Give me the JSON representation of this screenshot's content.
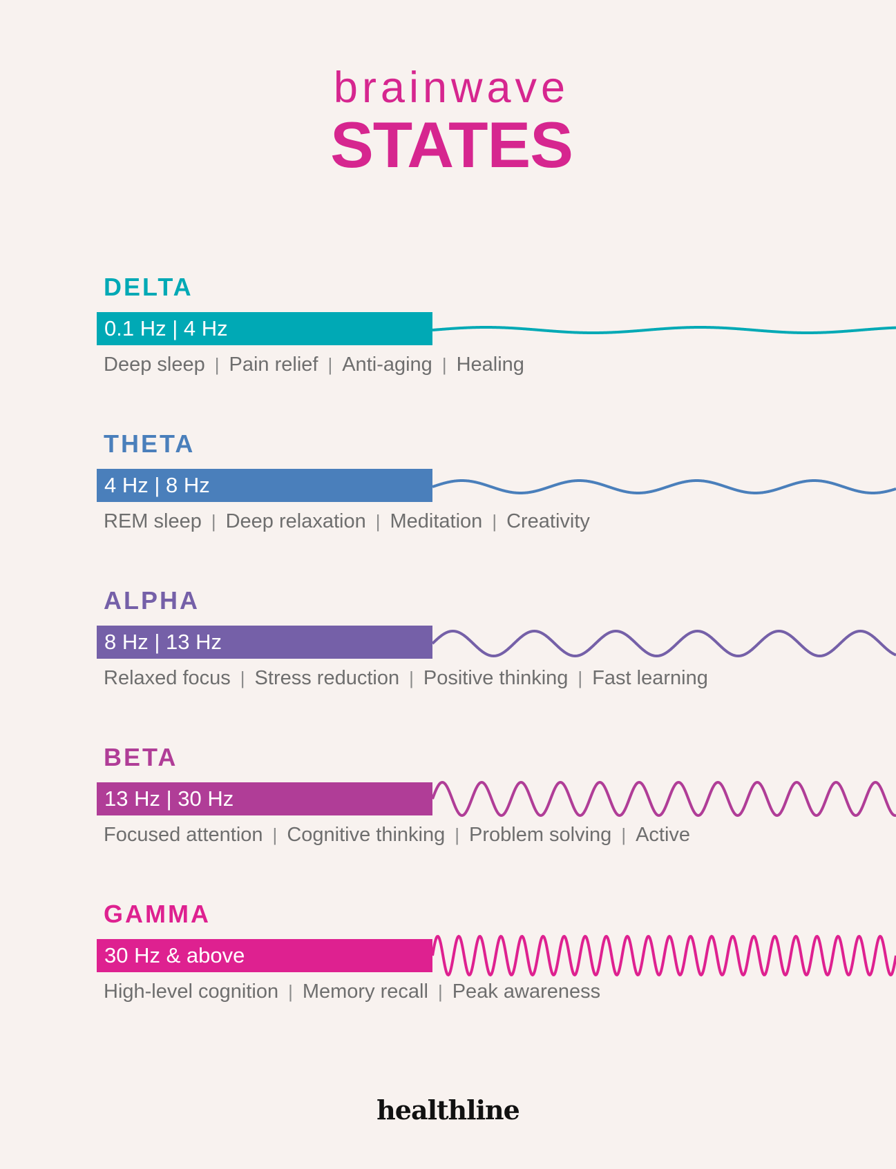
{
  "header": {
    "title_top": "brainwave",
    "title_main": "STATES"
  },
  "waves": [
    {
      "key": "delta",
      "name": "DELTA",
      "color": "#00a9b5",
      "range": "0.1 Hz | 4 Hz",
      "benefits": [
        "Deep sleep",
        "Pain relief",
        "Anti-aging",
        "Healing"
      ]
    },
    {
      "key": "theta",
      "name": "THETA",
      "color": "#4a7fbb",
      "range": "4 Hz | 8 Hz",
      "benefits": [
        "REM sleep",
        "Deep relaxation",
        "Meditation",
        "Creativity"
      ]
    },
    {
      "key": "alpha",
      "name": "ALPHA",
      "color": "#7560a8",
      "range": "8 Hz | 13 Hz",
      "benefits": [
        "Relaxed focus",
        "Stress reduction",
        "Positive thinking",
        "Fast learning"
      ]
    },
    {
      "key": "beta",
      "name": "BETA",
      "color": "#b03d97",
      "range": "13 Hz | 30 Hz",
      "benefits": [
        "Focused attention",
        "Cognitive thinking",
        "Problem solving",
        "Active"
      ]
    },
    {
      "key": "gamma",
      "name": "GAMMA",
      "color": "#de2190",
      "range": "30 Hz & above",
      "benefits": [
        "High-level cognition",
        "Memory recall",
        "Peak awareness"
      ]
    }
  ],
  "logo": {
    "text": "healthline"
  }
}
